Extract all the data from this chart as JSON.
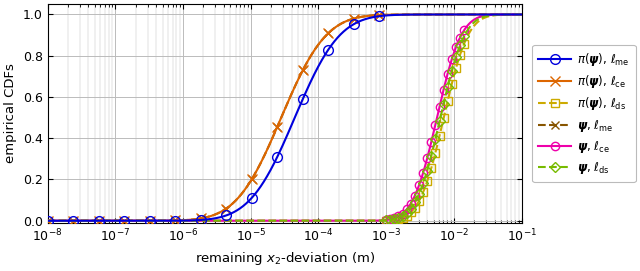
{
  "title": "",
  "xlabel": "remaining $x_2$-deviation (m)",
  "ylabel": "empirical CDFs",
  "xlim": [
    1e-08,
    0.1
  ],
  "ylim": [
    -0.01,
    1.05
  ],
  "series": [
    {
      "name": "$\\pi(\\boldsymbol{\\psi})$, $\\ell_{\\mathrm{me}}$",
      "color": "#0000dd",
      "linestyle": "-",
      "marker": "o",
      "markerfacecolor": "none",
      "markersize": 7,
      "linewidth": 1.5,
      "mean_log": -4.35,
      "std_log": 0.52,
      "group": "left"
    },
    {
      "name": "$\\pi(\\boldsymbol{\\psi})$, $\\ell_{\\mathrm{ce}}$",
      "color": "#dd6600",
      "linestyle": "-",
      "marker": "x",
      "markerfacecolor": "#dd6600",
      "markersize": 7,
      "linewidth": 1.5,
      "mean_log": -4.55,
      "std_log": 0.52,
      "group": "left"
    },
    {
      "name": "$\\pi(\\boldsymbol{\\psi})$, $\\ell_{\\mathrm{ds}}$",
      "color": "#ccaa00",
      "linestyle": "--",
      "marker": "s",
      "markerfacecolor": "none",
      "markersize": 6,
      "linewidth": 1.5,
      "mean_log": -2.15,
      "std_log": 0.28,
      "group": "right"
    },
    {
      "name": "$\\boldsymbol{\\psi}$, $\\ell_{\\mathrm{me}}$",
      "color": "#885500",
      "linestyle": "--",
      "marker": "x",
      "markerfacecolor": "#885500",
      "markersize": 6,
      "linewidth": 1.5,
      "mean_log": -4.55,
      "std_log": 0.52,
      "group": "left"
    },
    {
      "name": "$\\boldsymbol{\\psi}$, $\\ell_{\\mathrm{ce}}$",
      "color": "#ee00aa",
      "linestyle": "-",
      "marker": "o",
      "markerfacecolor": "none",
      "markersize": 6,
      "linewidth": 1.5,
      "mean_log": -2.25,
      "std_log": 0.28,
      "group": "right"
    },
    {
      "name": "$\\boldsymbol{\\psi}$, $\\ell_{\\mathrm{ds}}$",
      "color": "#77bb00",
      "linestyle": "--",
      "marker": "D",
      "markerfacecolor": "none",
      "markersize": 5,
      "linewidth": 1.5,
      "mean_log": -2.2,
      "std_log": 0.28,
      "group": "right"
    }
  ],
  "background_color": "#ffffff",
  "grid_color": "#bbbbbb"
}
